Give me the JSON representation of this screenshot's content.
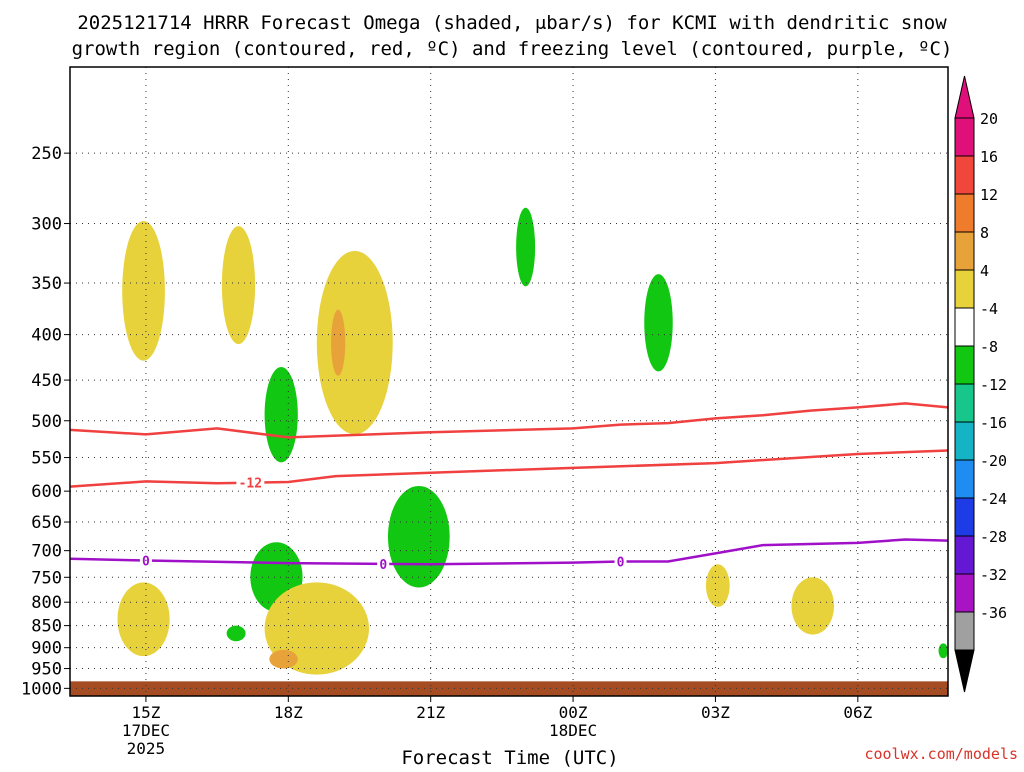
{
  "chart_data": {
    "type": "heatmap",
    "title_line1": "2025121714 HRRR Forecast Omega (shaded, μbar/s) for KCMI with dendritic snow",
    "title_line2": "growth region (contoured, red, ºC) and freezing level (contoured, purple, ºC)",
    "xlabel": "Forecast Time (UTC)",
    "credit": "coolwx.com/models",
    "y_axis": {
      "scale": "log-pressure",
      "range_hpa": [
        1020,
        200
      ],
      "inverted": true,
      "ticks": [
        250,
        300,
        350,
        400,
        450,
        500,
        550,
        600,
        650,
        700,
        750,
        800,
        850,
        900,
        950,
        1000
      ]
    },
    "x_axis": {
      "range_hours": [
        -1.6,
        16.9
      ],
      "ticks": [
        {
          "hour": 0,
          "lines": [
            "15Z",
            "17DEC",
            "2025"
          ]
        },
        {
          "hour": 3,
          "lines": [
            "18Z"
          ]
        },
        {
          "hour": 6,
          "lines": [
            "21Z"
          ]
        },
        {
          "hour": 9,
          "lines": [
            "00Z",
            "18DEC"
          ]
        },
        {
          "hour": 12,
          "lines": [
            "03Z"
          ]
        },
        {
          "hour": 15,
          "lines": [
            "06Z"
          ]
        }
      ]
    },
    "grid": true,
    "colorbar": {
      "labels": [
        "20",
        "16",
        "12",
        "8",
        "4",
        "-4",
        "-8",
        "-12",
        "-16",
        "-20",
        "-24",
        "-28",
        "-32",
        "-36"
      ],
      "bins": [
        {
          "from": 20,
          "to": 24,
          "color": "#e0107a"
        },
        {
          "from": 16,
          "to": 20,
          "color": "#f0463c"
        },
        {
          "from": 12,
          "to": 16,
          "color": "#ee7c2c"
        },
        {
          "from": 8,
          "to": 12,
          "color": "#e8a23a"
        },
        {
          "from": 4,
          "to": 8,
          "color": "#e8d23c"
        },
        {
          "from": -4,
          "to": 4,
          "color": "#ffffff"
        },
        {
          "from": -8,
          "to": -4,
          "color": "#11c711"
        },
        {
          "from": -12,
          "to": -8,
          "color": "#16c68a"
        },
        {
          "from": -16,
          "to": -12,
          "color": "#14b4c4"
        },
        {
          "from": -20,
          "to": -16,
          "color": "#1e8cf0"
        },
        {
          "from": -24,
          "to": -20,
          "color": "#1e3ce6"
        },
        {
          "from": -28,
          "to": -24,
          "color": "#6418d4"
        },
        {
          "from": -32,
          "to": -28,
          "color": "#a814c4"
        },
        {
          "from": -36,
          "to": -32,
          "color": "#a0a0a0"
        }
      ],
      "top_arrow_color": "#e0107a",
      "bottom_arrow_color": "#000000"
    },
    "shaded_regions": [
      {
        "class": "4 to 8",
        "color": "#e8d23c",
        "hour_range": [
          -0.5,
          0.4
        ],
        "p_range_hpa": [
          298,
          428
        ]
      },
      {
        "class": "4 to 8",
        "color": "#e8d23c",
        "hour_range": [
          1.6,
          2.3
        ],
        "p_range_hpa": [
          302,
          410
        ]
      },
      {
        "class": "4 to 8",
        "color": "#e8d23c",
        "hour_range": [
          3.6,
          5.2
        ],
        "p_range_hpa": [
          322,
          518
        ]
      },
      {
        "class": "8 to 12",
        "color": "#e8a23a",
        "hour_range": [
          3.9,
          4.2
        ],
        "p_range_hpa": [
          375,
          445
        ]
      },
      {
        "class": "-8 to -4",
        "color": "#11c711",
        "hour_range": [
          2.5,
          3.2
        ],
        "p_range_hpa": [
          435,
          557
        ]
      },
      {
        "class": "-8 to -4",
        "color": "#11c711",
        "hour_range": [
          7.8,
          8.2
        ],
        "p_range_hpa": [
          288,
          353
        ]
      },
      {
        "class": "-8 to -4",
        "color": "#11c711",
        "hour_range": [
          10.5,
          11.1
        ],
        "p_range_hpa": [
          342,
          440
        ]
      },
      {
        "class": "-8 to -4",
        "color": "#11c711",
        "hour_range": [
          5.1,
          6.4
        ],
        "p_range_hpa": [
          592,
          770
        ]
      },
      {
        "class": "-8 to -4",
        "color": "#11c711",
        "hour_range": [
          2.2,
          3.3
        ],
        "p_range_hpa": [
          685,
          820
        ]
      },
      {
        "class": "4 to 8",
        "color": "#e8d23c",
        "hour_range": [
          -0.6,
          0.5
        ],
        "p_range_hpa": [
          760,
          920
        ]
      },
      {
        "class": "4 to 8",
        "color": "#e8d23c",
        "hour_range": [
          2.5,
          4.7
        ],
        "p_range_hpa": [
          760,
          965
        ]
      },
      {
        "class": "8 to 12",
        "color": "#e8a23a",
        "hour_range": [
          2.6,
          3.2
        ],
        "p_range_hpa": [
          905,
          950
        ]
      },
      {
        "class": "-8 to -4",
        "color": "#11c711",
        "hour_range": [
          1.7,
          2.1
        ],
        "p_range_hpa": [
          850,
          885
        ]
      },
      {
        "class": "4 to 8",
        "color": "#e8d23c",
        "hour_range": [
          11.8,
          12.3
        ],
        "p_range_hpa": [
          725,
          810
        ]
      },
      {
        "class": "4 to 8",
        "color": "#e8d23c",
        "hour_range": [
          13.6,
          14.5
        ],
        "p_range_hpa": [
          750,
          870
        ]
      },
      {
        "class": "-8 to -4",
        "color": "#11c711",
        "hour_range": [
          16.7,
          16.9
        ],
        "p_range_hpa": [
          890,
          925
        ]
      }
    ],
    "contours": [
      {
        "name": "dendritic upper (-18)",
        "color": "#f04040",
        "x": [
          -1.6,
          0,
          1.5,
          3,
          6,
          9,
          10,
          11,
          12,
          13,
          14,
          15,
          16,
          16.9
        ],
        "p": [
          512,
          518,
          510,
          522,
          515,
          510,
          505,
          503,
          497,
          493,
          487,
          483,
          478,
          483
        ]
      },
      {
        "name": "dendritic lower (-12)",
        "color": "#f04040",
        "label": "-12",
        "label_hour": 2.2,
        "x": [
          -1.6,
          0,
          1.5,
          3,
          4,
          6,
          9,
          12,
          15,
          16.9
        ],
        "p": [
          593,
          585,
          588,
          586,
          577,
          572,
          565,
          558,
          545,
          540
        ]
      },
      {
        "name": "freezing level (0)",
        "color": "#a010c8",
        "label": "0",
        "label_hours": [
          0,
          5,
          10
        ],
        "x": [
          -1.6,
          0,
          3,
          6,
          9,
          10,
          11,
          12,
          13,
          15,
          16,
          16.9
        ],
        "p": [
          715,
          718,
          723,
          725,
          722,
          720,
          720,
          705,
          690,
          686,
          680,
          682
        ]
      }
    ],
    "terrain": {
      "color": "#a54c23",
      "top_hpa": 982
    }
  }
}
